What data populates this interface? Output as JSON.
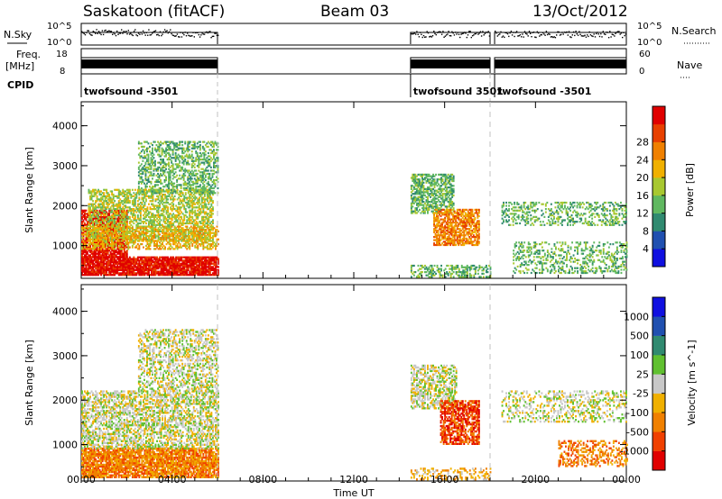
{
  "header": {
    "title": "Saskatoon (fitACF)",
    "beam": "Beam 03",
    "date": "13/Oct/2012"
  },
  "strips": {
    "nsky_label": "N.Sky",
    "nsky_ticks": [
      "10^5",
      "10^0"
    ],
    "nsearch_label": "N.Search",
    "nsearch_ticks": [
      "10^5",
      "10^0"
    ],
    "freq_label": "Freq.",
    "freq_unit": "[MHz]",
    "freq_ticks": [
      "18",
      "8"
    ],
    "nave_label": "Nave",
    "nave_ticks": [
      "60",
      "0"
    ],
    "cpid_label": "CPID",
    "cpid_segments": [
      {
        "label": "twofsound -3501",
        "start": 0.0,
        "end": 6.0
      },
      {
        "label": "twofsound 3501",
        "start": 14.5,
        "end": 18.0
      },
      {
        "label": "twofsound -3501",
        "start": 18.2,
        "end": 24.0
      }
    ]
  },
  "chart_data": [
    {
      "type": "heatmap",
      "name": "power",
      "ylabel": "Slant Range [km]",
      "yticks": [
        "1000",
        "2000",
        "3000",
        "4000"
      ],
      "ylim": [
        180,
        4600
      ],
      "colorbar_label": "Power [dB]",
      "colorbar_ticks": [
        "4",
        "8",
        "12",
        "16",
        "20",
        "24",
        "28"
      ],
      "colorbar_colors": [
        "#1010e0",
        "#2050b0",
        "#308a70",
        "#60b860",
        "#a8c830",
        "#f0b000",
        "#f08000",
        "#e84000",
        "#e00000"
      ],
      "blobs": [
        {
          "t": [
            0.0,
            6.0
          ],
          "r": [
            250,
            700
          ],
          "level": 8,
          "density": 0.9
        },
        {
          "t": [
            0.0,
            2.0
          ],
          "r": [
            700,
            1900
          ],
          "level": 8,
          "density": 0.8
        },
        {
          "t": [
            0.3,
            5.8
          ],
          "r": [
            1100,
            2400
          ],
          "level": 4,
          "density": 0.55
        },
        {
          "t": [
            2.5,
            6.0
          ],
          "r": [
            2300,
            3600
          ],
          "level": 3,
          "density": 0.45
        },
        {
          "t": [
            0.0,
            6.0
          ],
          "r": [
            900,
            1500
          ],
          "level": 5,
          "density": 0.5
        },
        {
          "t": [
            14.5,
            16.4
          ],
          "r": [
            1800,
            2800
          ],
          "level": 3,
          "density": 0.6
        },
        {
          "t": [
            15.5,
            17.5
          ],
          "r": [
            1000,
            1900
          ],
          "level": 6,
          "density": 0.7
        },
        {
          "t": [
            14.5,
            18.0
          ],
          "r": [
            200,
            500
          ],
          "level": 3,
          "density": 0.4
        },
        {
          "t": [
            18.5,
            24.0
          ],
          "r": [
            1500,
            2100
          ],
          "level": 3,
          "density": 0.35
        },
        {
          "t": [
            19.0,
            24.0
          ],
          "r": [
            300,
            1100
          ],
          "level": 3,
          "density": 0.3
        }
      ]
    },
    {
      "type": "heatmap",
      "name": "velocity",
      "ylabel": "Slant Range [km]",
      "yticks": [
        "1000",
        "2000",
        "3000",
        "4000"
      ],
      "ylim": [
        180,
        4600
      ],
      "colorbar_label": "Velocity [m s^-1]",
      "colorbar_ticks": [
        "-1000",
        "-500",
        "-100",
        "-25",
        "25",
        "100",
        "500",
        "1000"
      ],
      "colorbar_colors": [
        "#e00000",
        "#f04000",
        "#f08000",
        "#f0b000",
        "#c8c8c8",
        "#60c030",
        "#308a70",
        "#2050b0",
        "#1010e0"
      ],
      "blobs": [
        {
          "t": [
            0.0,
            6.0
          ],
          "r": [
            250,
            900
          ],
          "level": 2,
          "density": 0.85
        },
        {
          "t": [
            0.0,
            6.0
          ],
          "r": [
            900,
            2200
          ],
          "level": 4,
          "density": 0.55
        },
        {
          "t": [
            2.5,
            6.0
          ],
          "r": [
            2200,
            3600
          ],
          "level": 4,
          "density": 0.45
        },
        {
          "t": [
            14.5,
            16.5
          ],
          "r": [
            1800,
            2800
          ],
          "level": 4,
          "density": 0.55
        },
        {
          "t": [
            15.8,
            17.5
          ],
          "r": [
            1000,
            2000
          ],
          "level": 1,
          "density": 0.7
        },
        {
          "t": [
            14.5,
            18.0
          ],
          "r": [
            200,
            450
          ],
          "level": 3,
          "density": 0.35
        },
        {
          "t": [
            18.5,
            24.0
          ],
          "r": [
            1500,
            2200
          ],
          "level": 4,
          "density": 0.3
        },
        {
          "t": [
            21.0,
            24.0
          ],
          "r": [
            500,
            1100
          ],
          "level": 2,
          "density": 0.4
        }
      ]
    }
  ],
  "x_axis": {
    "label": "Time UT",
    "ticks": [
      "00:00",
      "04:00",
      "08:00",
      "12:00",
      "16:00",
      "20:00",
      "00:00"
    ],
    "range_hours": [
      0,
      24
    ],
    "dashed_hours": [
      6.0,
      18.0
    ]
  }
}
